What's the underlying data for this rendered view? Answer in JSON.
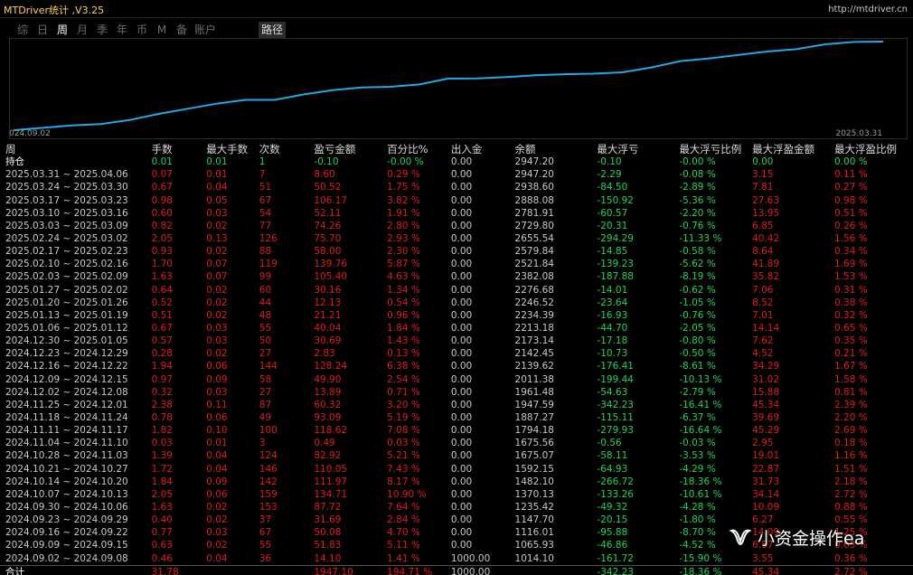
{
  "window": {
    "title": "MTDriver统计 ,V3.25",
    "url": "http://mtdriver.cn"
  },
  "tabs": [
    {
      "label": "综",
      "active": false
    },
    {
      "label": "日",
      "active": false
    },
    {
      "label": "周",
      "active": true
    },
    {
      "label": "月",
      "active": false
    },
    {
      "label": "季",
      "active": false
    },
    {
      "label": "年",
      "active": false
    },
    {
      "label": "币",
      "active": false
    },
    {
      "label": "M",
      "active": false
    },
    {
      "label": "备",
      "active": false
    },
    {
      "label": "账户",
      "active": false
    }
  ],
  "path_button": "路径",
  "chart": {
    "x_start_label": "024.09.02",
    "x_end_label": "2025.03.31",
    "line_color": "#21a8e6",
    "chart_data": {
      "type": "line",
      "x": [
        "2024.09.02",
        "2024.09.09",
        "2024.09.16",
        "2024.09.23",
        "2024.09.30",
        "2024.10.07",
        "2024.10.14",
        "2024.10.21",
        "2024.10.28",
        "2024.11.04",
        "2024.11.11",
        "2024.11.18",
        "2024.11.25",
        "2024.12.02",
        "2024.12.09",
        "2024.12.16",
        "2024.12.23",
        "2024.12.30",
        "2025.01.06",
        "2025.01.13",
        "2025.01.20",
        "2025.01.27",
        "2025.02.03",
        "2025.02.10",
        "2025.02.17",
        "2025.02.24",
        "2025.03.03",
        "2025.03.10",
        "2025.03.17",
        "2025.03.24",
        "2025.03.31"
      ],
      "values": [
        1014.1,
        1065.93,
        1116.01,
        1147.7,
        1235.42,
        1370.13,
        1482.1,
        1592.15,
        1675.07,
        1675.56,
        1794.18,
        1887.27,
        1947.59,
        1961.48,
        2011.38,
        2139.62,
        2142.45,
        2173.14,
        2213.18,
        2234.39,
        2246.52,
        2276.68,
        2382.08,
        2521.84,
        2579.84,
        2655.54,
        2729.8,
        2781.91,
        2888.08,
        2938.6,
        2947.2
      ]
    }
  },
  "table": {
    "headers": [
      "周",
      "手数",
      "最大手数",
      "次数",
      "盈亏金额",
      "百分比%",
      "出入金",
      "余额",
      "最大浮亏",
      "最大浮亏比例",
      "最大浮盈金额",
      "最大浮盈比例"
    ],
    "holding": [
      "持仓",
      "0.01",
      "0.01",
      "1",
      "-0.10",
      "-0.00 %",
      "0.00",
      "2947.20",
      "-0.10",
      "-0.00 %",
      "0.00",
      "0.00 %"
    ],
    "rows": [
      [
        "2025.03.31 ~ 2025.04.06",
        "0.07",
        "0.01",
        "7",
        "8.60",
        "0.29 %",
        "0.00",
        "2947.20",
        "-2.29",
        "-0.08 %",
        "3.15",
        "0.11 %"
      ],
      [
        "2025.03.24 ~ 2025.03.30",
        "0.67",
        "0.04",
        "51",
        "50.52",
        "1.75 %",
        "0.00",
        "2938.60",
        "-84.50",
        "-2.89 %",
        "7.81",
        "0.27 %"
      ],
      [
        "2025.03.17 ~ 2025.03.23",
        "0.98",
        "0.05",
        "67",
        "106.17",
        "3.82 %",
        "0.00",
        "2888.08",
        "-150.92",
        "-5.36 %",
        "27.63",
        "0.98 %"
      ],
      [
        "2025.03.10 ~ 2025.03.16",
        "0.60",
        "0.03",
        "54",
        "52.11",
        "1.91 %",
        "0.00",
        "2781.91",
        "-60.57",
        "-2.20 %",
        "13.95",
        "0.51 %"
      ],
      [
        "2025.03.03 ~ 2025.03.09",
        "0.82",
        "0.02",
        "77",
        "74.26",
        "2.80 %",
        "0.00",
        "2729.80",
        "-20.31",
        "-0.76 %",
        "6.85",
        "0.26 %"
      ],
      [
        "2025.02.24 ~ 2025.03.02",
        "2.05",
        "0.13",
        "126",
        "75.70",
        "2.93 %",
        "0.00",
        "2655.54",
        "-294.29",
        "-11.33 %",
        "40.42",
        "1.56 %"
      ],
      [
        "2025.02.17 ~ 2025.02.23",
        "0.93",
        "0.02",
        "88",
        "58.00",
        "2.30 %",
        "0.00",
        "2579.84",
        "-14.85",
        "-0.58 %",
        "8.64",
        "0.34 %"
      ],
      [
        "2025.02.10 ~ 2025.02.16",
        "1.70",
        "0.07",
        "119",
        "139.76",
        "5.87 %",
        "0.00",
        "2521.84",
        "-139.23",
        "-5.62 %",
        "41.89",
        "1.69 %"
      ],
      [
        "2025.02.03 ~ 2025.02.09",
        "1.63",
        "0.07",
        "99",
        "105.40",
        "4.63 %",
        "0.00",
        "2382.08",
        "-187.88",
        "-8.19 %",
        "35.82",
        "1.53 %"
      ],
      [
        "2025.01.27 ~ 2025.02.02",
        "0.64",
        "0.02",
        "60",
        "30.16",
        "1.34 %",
        "0.00",
        "2276.68",
        "-14.01",
        "-0.62 %",
        "7.06",
        "0.31 %"
      ],
      [
        "2025.01.20 ~ 2025.01.26",
        "0.52",
        "0.02",
        "44",
        "12.13",
        "0.54 %",
        "0.00",
        "2246.52",
        "-23.64",
        "-1.05 %",
        "8.52",
        "0.38 %"
      ],
      [
        "2025.01.13 ~ 2025.01.19",
        "0.51",
        "0.02",
        "48",
        "21.21",
        "0.96 %",
        "0.00",
        "2234.39",
        "-16.93",
        "-0.76 %",
        "7.01",
        "0.32 %"
      ],
      [
        "2025.01.06 ~ 2025.01.12",
        "0.67",
        "0.03",
        "55",
        "40.04",
        "1.84 %",
        "0.00",
        "2213.18",
        "-44.70",
        "-2.05 %",
        "14.14",
        "0.65 %"
      ],
      [
        "2024.12.30 ~ 2025.01.05",
        "0.57",
        "0.03",
        "50",
        "30.69",
        "1.43 %",
        "0.00",
        "2173.14",
        "-17.18",
        "-0.80 %",
        "7.62",
        "0.35 %"
      ],
      [
        "2024.12.23 ~ 2024.12.29",
        "0.28",
        "0.02",
        "27",
        "2.83",
        "0.13 %",
        "0.00",
        "2142.45",
        "-10.73",
        "-0.50 %",
        "4.52",
        "0.21 %"
      ],
      [
        "2024.12.16 ~ 2024.12.22",
        "1.94",
        "0.06",
        "144",
        "128.24",
        "6.38 %",
        "0.00",
        "2139.62",
        "-176.41",
        "-8.61 %",
        "34.29",
        "1.67 %"
      ],
      [
        "2024.12.09 ~ 2024.12.15",
        "0.97",
        "0.09",
        "58",
        "49.90",
        "2.54 %",
        "0.00",
        "2011.38",
        "-199.44",
        "-10.13 %",
        "31.02",
        "1.58 %"
      ],
      [
        "2024.12.02 ~ 2024.12.08",
        "0.32",
        "0.03",
        "27",
        "13.89",
        "0.71 %",
        "0.00",
        "1961.48",
        "-54.63",
        "-2.79 %",
        "15.88",
        "0.81 %"
      ],
      [
        "2024.11.25 ~ 2024.12.01",
        "2.38",
        "0.11",
        "87",
        "60.32",
        "3.20 %",
        "0.00",
        "1947.59",
        "-342.23",
        "-16.41 %",
        "45.34",
        "2.39 %"
      ],
      [
        "2024.11.18 ~ 2024.11.24",
        "0.78",
        "0.06",
        "49",
        "93.09",
        "5.19 %",
        "0.00",
        "1887.27",
        "-115.11",
        "-6.37 %",
        "39.69",
        "2.20 %"
      ],
      [
        "2024.11.11 ~ 2024.11.17",
        "1.82",
        "0.10",
        "100",
        "118.62",
        "7.08 %",
        "0.00",
        "1794.18",
        "-279.93",
        "-16.64 %",
        "45.29",
        "2.69 %"
      ],
      [
        "2024.11.04 ~ 2024.11.10",
        "0.03",
        "0.01",
        "3",
        "0.49",
        "0.03 %",
        "0.00",
        "1675.56",
        "-0.56",
        "-0.03 %",
        "2.95",
        "0.18 %"
      ],
      [
        "2024.10.28 ~ 2024.11.03",
        "1.39",
        "0.04",
        "124",
        "82.92",
        "5.21 %",
        "0.00",
        "1675.07",
        "-58.11",
        "-3.53 %",
        "19.01",
        "1.16 %"
      ],
      [
        "2024.10.21 ~ 2024.10.27",
        "1.72",
        "0.04",
        "146",
        "110.05",
        "7.43 %",
        "0.00",
        "1592.15",
        "-64.93",
        "-4.29 %",
        "22.87",
        "1.51 %"
      ],
      [
        "2024.10.14 ~ 2024.10.20",
        "1.84",
        "0.09",
        "142",
        "111.97",
        "8.17 %",
        "0.00",
        "1482.10",
        "-266.72",
        "-18.36 %",
        "31.73",
        "2.18 %"
      ],
      [
        "2024.10.07 ~ 2024.10.13",
        "2.05",
        "0.06",
        "159",
        "134.71",
        "10.90 %",
        "0.00",
        "1370.13",
        "-133.26",
        "-10.61 %",
        "34.14",
        "2.72 %"
      ],
      [
        "2024.09.30 ~ 2024.10.06",
        "1.63",
        "0.02",
        "153",
        "87.72",
        "7.64 %",
        "0.00",
        "1235.42",
        "-49.32",
        "-4.28 %",
        "10.09",
        "0.88 %"
      ],
      [
        "2024.09.23 ~ 2024.09.29",
        "0.40",
        "0.02",
        "37",
        "31.69",
        "2.84 %",
        "0.00",
        "1147.70",
        "-20.15",
        "-1.80 %",
        "6.27",
        "0.55 %"
      ],
      [
        "2024.09.16 ~ 2024.09.22",
        "0.77",
        "0.03",
        "67",
        "50.08",
        "4.70 %",
        "0.00",
        "1116.01",
        "-95.88",
        "-8.70 %",
        "14.09",
        "1.25 %"
      ],
      [
        "2024.09.09 ~ 2024.09.15",
        "0.63",
        "0.02",
        "55",
        "51.83",
        "5.11 %",
        "0.00",
        "1065.93",
        "-46.86",
        "-4.52 %",
        "6.57",
        "0.63 %"
      ],
      [
        "2024.09.02 ~ 2024.09.08",
        "0.46",
        "0.04",
        "36",
        "14.10",
        "1.41 %",
        "1000.00",
        "1014.10",
        "-161.72",
        "-15.90 %",
        "3.55",
        "0.36 %"
      ]
    ],
    "total": [
      "合计",
      "31.78",
      "",
      "",
      "1947.10",
      "194.71 %",
      "1000.00",
      "",
      "-342.23",
      "-18.36 %",
      "45.34",
      "2.72 %"
    ]
  },
  "watermark": {
    "text": "小资金操作ea"
  },
  "colors": {
    "profit": "#e01c1c",
    "loss": "#1ed45a",
    "title": "#ffd24a",
    "line": "#21a8e6"
  }
}
